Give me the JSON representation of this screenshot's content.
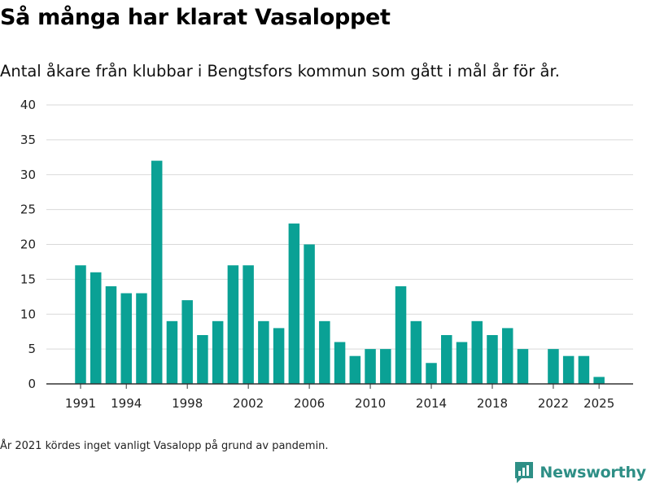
{
  "colors": {
    "bar": "#0aa195",
    "grid": "#d9d9d9",
    "axis": "#333333",
    "brand": "#2e8f86"
  },
  "title": "Så många har klarat Vasaloppet",
  "subtitle": "Antal åkare från klubbar i Bengtsfors kommun som gått i mål år för år.",
  "footnote": "År 2021 kördes inget vanligt Vasalopp på grund av pandemin.",
  "brand": {
    "name": "Newsworthy",
    "icon": "bar-chart-speech-bubble-icon"
  },
  "chart_data": {
    "type": "bar",
    "title": "Så många har klarat Vasaloppet",
    "xlabel": "",
    "ylabel": "",
    "ylim": [
      0,
      40
    ],
    "yticks": [
      0,
      5,
      10,
      15,
      20,
      25,
      30,
      35,
      40
    ],
    "xticks": [
      1991,
      1994,
      1998,
      2002,
      2006,
      2010,
      2014,
      2018,
      2022,
      2025
    ],
    "xrange": [
      1988.5,
      2027.5
    ],
    "categories": [
      1991,
      1992,
      1993,
      1994,
      1995,
      1996,
      1997,
      1998,
      1999,
      2000,
      2001,
      2002,
      2003,
      2004,
      2005,
      2006,
      2007,
      2008,
      2009,
      2010,
      2011,
      2012,
      2013,
      2014,
      2015,
      2016,
      2017,
      2018,
      2019,
      2020,
      2021,
      2022,
      2023,
      2024,
      2025
    ],
    "values": [
      17,
      16,
      14,
      13,
      13,
      32,
      9,
      12,
      7,
      9,
      17,
      17,
      9,
      8,
      23,
      20,
      9,
      6,
      4,
      5,
      5,
      14,
      9,
      3,
      7,
      6,
      9,
      7,
      8,
      5,
      null,
      5,
      4,
      4,
      1
    ]
  }
}
